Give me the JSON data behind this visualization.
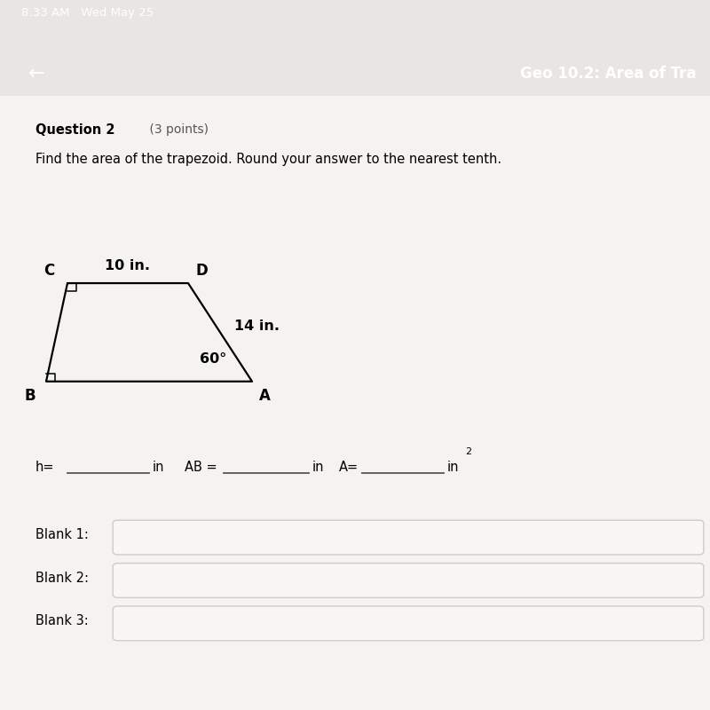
{
  "status_bar_bg": "#1a1a1a",
  "nav_bar_bg": "#2a2a2a",
  "page_bg": "#e8e6e3",
  "content_bg": "#f0eeeb",
  "status_text": "8:33 AM   Wed May 25",
  "nav_title": "Geo 10.2: Area of Tra",
  "back_arrow": "←",
  "question_label": "Question 2",
  "question_points": " (3 points)",
  "instruction": "Find the area of the trapezoid. Round your answer to the nearest tenth.",
  "label_C": "C",
  "label_D": "D",
  "label_A": "A",
  "label_B": "B",
  "cd_label": "10 in.",
  "da_label": "14 in.",
  "angle_label": "60°",
  "trapezoid_color": "#000000",
  "text_color": "#000000",
  "underline_color": "#555555",
  "blank_box_color": "#cccccc",
  "blank_labels": [
    "Blank 1:",
    "Blank 2:",
    "Blank 3:"
  ],
  "C": [
    0.095,
    0.695
  ],
  "D": [
    0.265,
    0.695
  ],
  "A": [
    0.355,
    0.535
  ],
  "B": [
    0.065,
    0.535
  ]
}
